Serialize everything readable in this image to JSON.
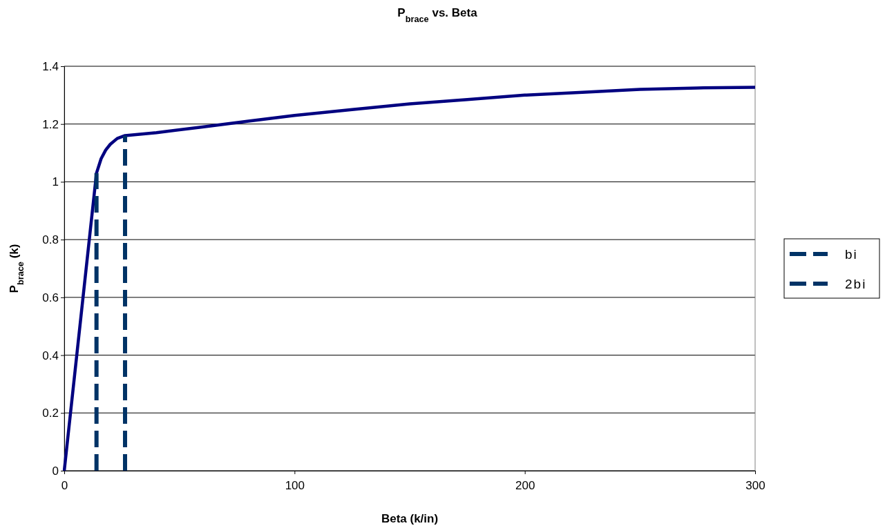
{
  "chart_data": {
    "type": "line",
    "title": "P$_{brace}$ vs. Beta",
    "xlabel": "Beta (k/in)",
    "ylabel": "P$_{brace}$ (k)",
    "xlim": [
      0,
      300
    ],
    "xticks": [
      0,
      100,
      200,
      300
    ],
    "ylim": [
      0,
      1.4
    ],
    "yticks": [
      0,
      0.2,
      0.4,
      0.6,
      0.8,
      1,
      1.2,
      1.4
    ],
    "grid": "y",
    "legend": "right",
    "line_style": "solid",
    "series": [
      {
        "color": "#000080",
        "x": [
          0,
          14,
          16,
          18,
          20,
          23,
          26.4,
          40,
          60,
          80,
          100,
          125,
          150,
          175,
          200,
          225,
          250,
          275,
          300
        ],
        "values": [
          0,
          1.03,
          1.08,
          1.11,
          1.13,
          1.15,
          1.16,
          1.17,
          1.19,
          1.21,
          1.23,
          1.25,
          1.27,
          1.285,
          1.3,
          1.31,
          1.32,
          1.325,
          1.327
        ]
      },
      {
        "name": "bi",
        "color": "#003366",
        "line_style": "dashed",
        "x": [
          14,
          14
        ],
        "values": [
          0,
          1.03
        ]
      },
      {
        "name": "2bi",
        "color": "#003366",
        "line_style": "dashed",
        "x": [
          26.4,
          26.4
        ],
        "values": [
          0,
          1.16
        ]
      }
    ]
  }
}
